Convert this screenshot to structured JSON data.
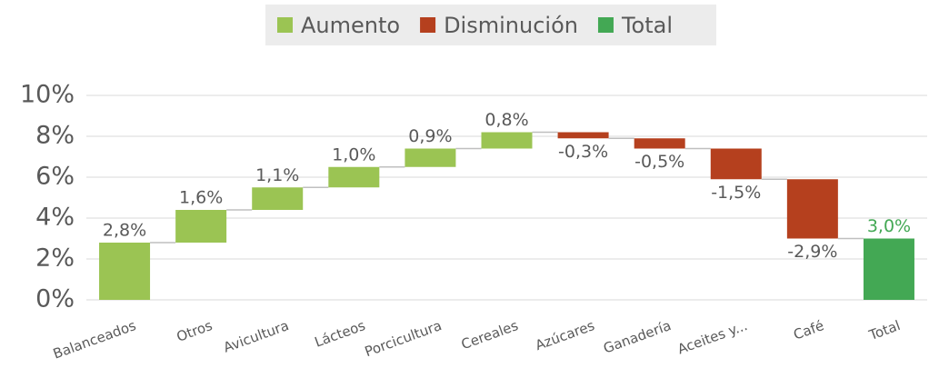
{
  "chart_data": {
    "type": "waterfall",
    "legend": [
      {
        "name": "Aumento",
        "color": "#9bc453"
      },
      {
        "name": "Disminución",
        "color": "#b5401e"
      },
      {
        "name": "Total",
        "color": "#43a854"
      }
    ],
    "categories": [
      "Balanceados",
      "Otros",
      "Avicultura",
      "Lácteos",
      "Porcicultura",
      "Cereales",
      "Azúcares",
      "Ganadería",
      "Aceites y...",
      "Café",
      "Total"
    ],
    "values": [
      2.8,
      1.6,
      1.1,
      1.0,
      0.9,
      0.8,
      -0.3,
      -0.5,
      -1.5,
      -2.9,
      3.0
    ],
    "value_labels": [
      "2,8%",
      "1,6%",
      "1,1%",
      "1,0%",
      "0,9%",
      "0,8%",
      "-0,3%",
      "-0,5%",
      "-1,5%",
      "-2,9%",
      "3,0%"
    ],
    "ylim": [
      0,
      10
    ],
    "yticks": [
      {
        "value": 0,
        "label": "0%"
      },
      {
        "value": 2,
        "label": "2%"
      },
      {
        "value": 4,
        "label": "4%"
      },
      {
        "value": 6,
        "label": "6%"
      },
      {
        "value": 8,
        "label": "8%"
      },
      {
        "value": 10,
        "label": "10%"
      }
    ],
    "grid": true
  }
}
